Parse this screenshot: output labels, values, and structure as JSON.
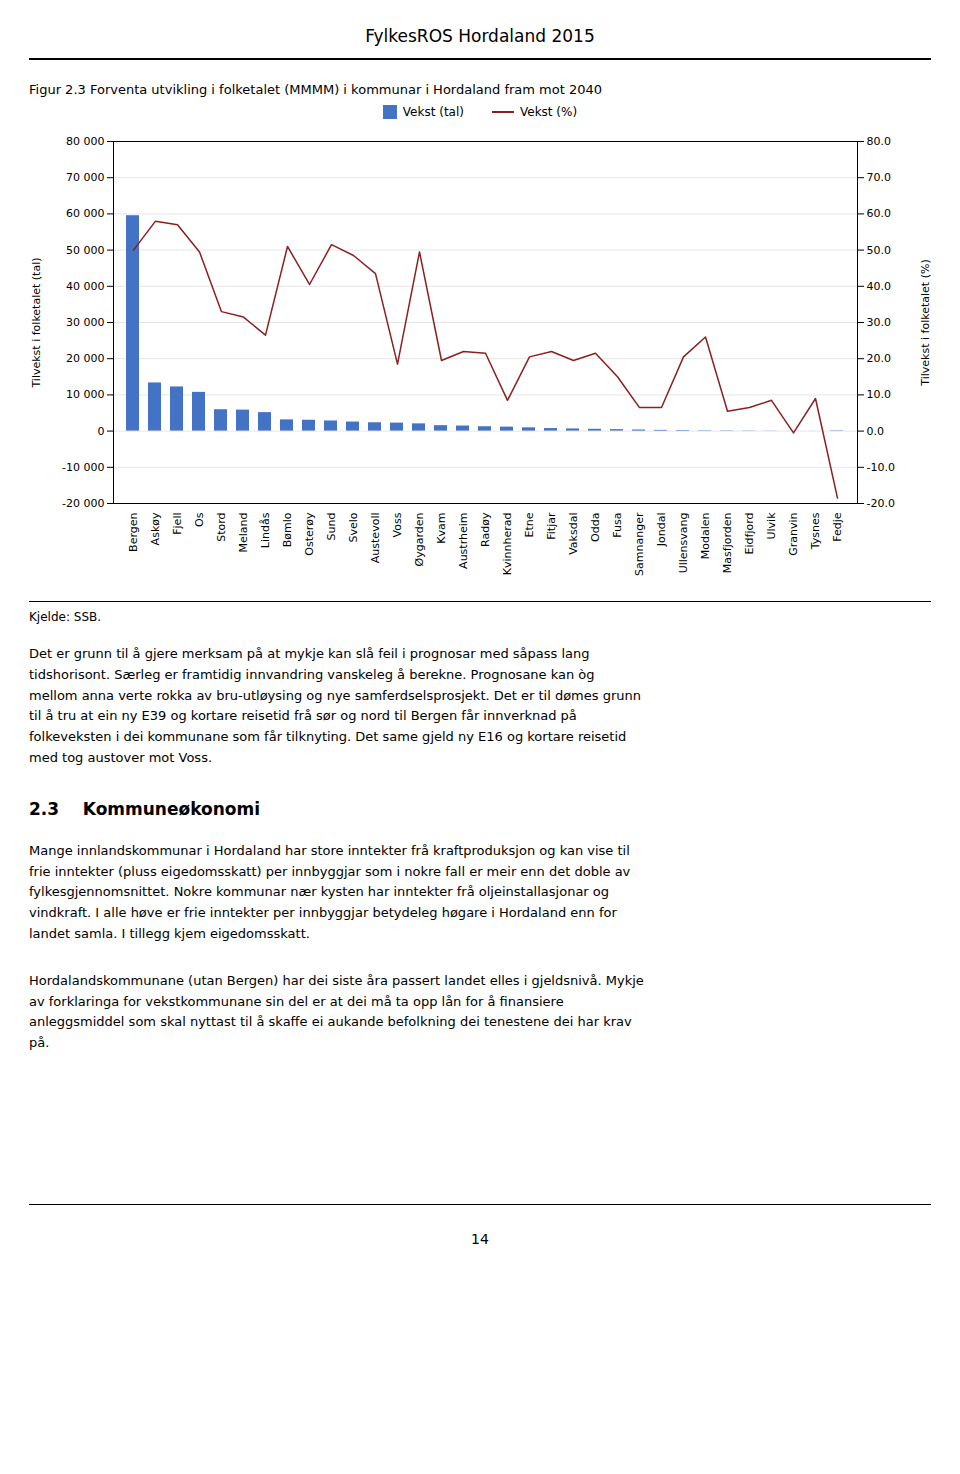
{
  "chart_data": {
    "type": "bar",
    "title": "Figur 2.3 Forventa utvikling i folketalet (MMMM) i kommunar i Hordaland fram mot 2040",
    "categories": [
      "Bergen",
      "Askøy",
      "Fjell",
      "Os",
      "Stord",
      "Meland",
      "Lindås",
      "Bømlo",
      "Osterøy",
      "Sund",
      "Svelo",
      "Austevoll",
      "Voss",
      "Øygarden",
      "Kvam",
      "Austrheim",
      "Radøy",
      "Kvinnherad",
      "Etne",
      "Fitjar",
      "Vaksdal",
      "Odda",
      "Fusa",
      "Samnanger",
      "Jondal",
      "Ullensvang",
      "Modalen",
      "Masfjorden",
      "Eidfjord",
      "Ulvik",
      "Granvin",
      "Tysnes",
      "Fedje"
    ],
    "series": [
      {
        "name": "Vekst (tal)",
        "type": "bar",
        "color": "#4472C4",
        "values": [
          59500,
          13300,
          12200,
          10700,
          5900,
          5800,
          5100,
          3100,
          3000,
          2800,
          2500,
          2300,
          2200,
          2000,
          1500,
          1400,
          1200,
          1100,
          900,
          700,
          600,
          500,
          400,
          300,
          200,
          150,
          100,
          80,
          60,
          40,
          20,
          10,
          -100
        ]
      },
      {
        "name": "Vekst (%)",
        "type": "line",
        "color": "#8B2020",
        "axis": "y2",
        "values": [
          50.0,
          58.0,
          57.0,
          49.5,
          33.0,
          31.5,
          26.5,
          51.0,
          40.5,
          51.5,
          48.5,
          43.5,
          18.5,
          49.5,
          19.5,
          22.0,
          21.5,
          8.5,
          20.5,
          22.0,
          19.5,
          21.5,
          15.0,
          6.5,
          6.5,
          20.5,
          26.0,
          5.5,
          6.5,
          8.5,
          -0.5,
          9.0,
          -18.5
        ]
      }
    ],
    "ylabel": "Tilvekst i folketalet (tal)",
    "y2label": "Tilvekst i folketalet (%)",
    "ylim": [
      -20000,
      80000
    ],
    "yticks": [
      {
        "value": -20000,
        "label": "-20 000"
      },
      {
        "value": -10000,
        "label": "-10 000"
      },
      0,
      {
        "value": 10000,
        "label": "10 000"
      },
      {
        "value": 20000,
        "label": "20 000"
      },
      {
        "value": 30000,
        "label": "30 000"
      },
      {
        "value": 40000,
        "label": "40 000"
      },
      {
        "value": 50000,
        "label": "50 000"
      },
      {
        "value": 60000,
        "label": "60 000"
      },
      {
        "value": 70000,
        "label": "70 000"
      },
      {
        "value": 80000,
        "label": "80 000"
      }
    ],
    "y2lim": [
      -20.0,
      80.0
    ],
    "y2ticks": [
      {
        "value": -20,
        "label": "-20.0"
      },
      {
        "value": -10,
        "label": "-10.0"
      },
      {
        "value": 0,
        "label": "0.0"
      },
      {
        "value": 10,
        "label": "10.0"
      },
      {
        "value": 20,
        "label": "20.0"
      },
      {
        "value": 30,
        "label": "30.0"
      },
      {
        "value": 40,
        "label": "40.0"
      },
      {
        "value": 50,
        "label": "50.0"
      },
      {
        "value": 60,
        "label": "60.0"
      },
      {
        "value": 70,
        "label": "70.0"
      },
      {
        "value": 80,
        "label": "80.0"
      }
    ],
    "grid": true,
    "legend": "top",
    "annotations": [
      "FylkesROS Hordaland 2015",
      "Kjelde: SSB.",
      "Det er grunn til å gjere merksam på at mykje kan slå feil i prognosar med såpass lang\ntidshorisont. Særleg er framtidig innvandring vanskeleg å berekne. Prognosane kan òg\nmellom anna verte rokka av bru-utløysing og nye samferdselsprosjekt. Det er til dømes grunn\ntil å tru at ein ny E39 og kortare reisetid frå sør og nord til Bergen får innverknad på\nfolkeveksten i dei kommunane som får tilknyting. Det same gjeld ny E16 og kortare reisetid\nmed tog austover mot Voss.",
      "2.3    Kommuneøkonomi",
      "Mange innlandskommunar i Hordaland har store inntekter frå kraftproduksjon og kan vise til\nfrie inntekter (pluss eigedomsskatt) per innbyggjar som i nokre fall er meir enn det doble av\nfylkesgjennomsnittet. Nokre kommunar nær kysten har inntekter frå oljeinstallasjonar og\nvindkraft. I alle høve er frie inntekter per innbyggjar betydeleg høgare i Hordaland enn for\nlandet samla. I tillegg kjem eigedomsskatt.",
      "Hordalandskommunane (utan Bergen) har dei siste åra passert landet elles i gjeldsnivå. Mykje\nav forklaringa for vekstkommunane sin del er at dei må ta opp lån for å finansiere\nanleggsmiddel som skal nyttast til å skaffe ei aukande befolkning dei tenestene dei har krav\npå.",
      "14"
    ]
  }
}
